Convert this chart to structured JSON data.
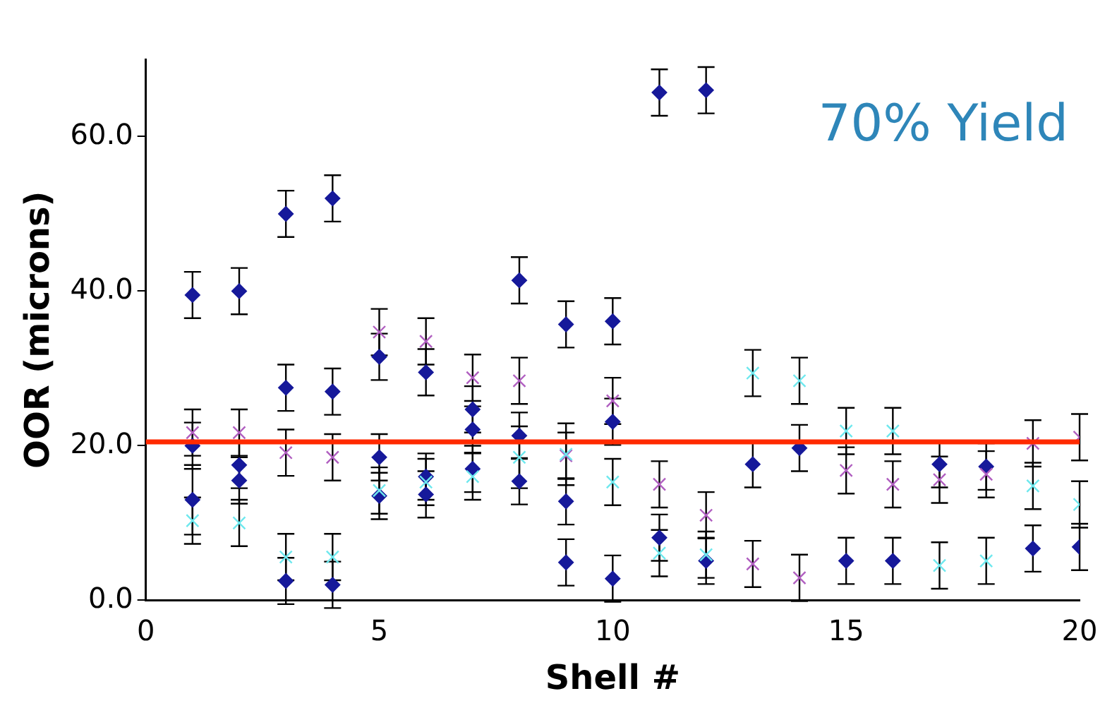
{
  "chart_data": {
    "type": "scatter",
    "xlabel": "Shell #",
    "ylabel": "OOR (microns)",
    "annotations": [
      "70% Yield"
    ],
    "xlim": [
      0,
      20
    ],
    "xticks": [
      0,
      5,
      10,
      15,
      20
    ],
    "ylim": [
      0,
      70
    ],
    "yticks": [
      {
        "value": 0,
        "label": "0.0"
      },
      {
        "value": 20,
        "label": "20.0"
      },
      {
        "value": 40,
        "label": "40.0"
      },
      {
        "value": 60,
        "label": "60.0"
      }
    ],
    "grid": false,
    "legend": false,
    "ref_lines": [
      {
        "axis": "y",
        "value": 20.5,
        "color": "#ff2a00"
      }
    ],
    "series": [
      {
        "color": "#16199a",
        "marker": "diamond",
        "x": [
          1,
          1,
          1,
          2,
          2,
          2,
          3,
          3,
          3,
          4,
          4,
          4,
          5,
          5,
          5,
          6,
          6,
          6,
          7,
          7,
          7,
          8,
          8,
          8,
          9,
          9,
          9,
          10,
          10,
          10,
          11,
          11,
          12,
          12,
          13,
          14,
          15,
          16,
          17,
          18,
          19,
          20
        ],
        "values": [
          39.5,
          20,
          13,
          40,
          17.5,
          15.5,
          50,
          27.5,
          2.5,
          52,
          27,
          2,
          31.5,
          18.5,
          13.5,
          29.5,
          16,
          13.7,
          24.7,
          22.1,
          17,
          41.4,
          21.3,
          15.4,
          35.7,
          12.8,
          4.9,
          36.1,
          23.1,
          2.8,
          65.7,
          8.1,
          66,
          5.1,
          17.6,
          19.7,
          5.1,
          5.1,
          17.6,
          17.3,
          6.7,
          6.9
        ],
        "errors": [
          3,
          3,
          4.5,
          3,
          3,
          3,
          3,
          3,
          3,
          3,
          3,
          3,
          3,
          3,
          3,
          3,
          3,
          3,
          3,
          3,
          3,
          3,
          3,
          3,
          3,
          3,
          3,
          3,
          3,
          3,
          3,
          3,
          3,
          3,
          3,
          3,
          3,
          3,
          3,
          3,
          3,
          3
        ]
      },
      {
        "color": "#b05ec0",
        "marker": "cross",
        "x": [
          1,
          2,
          3,
          4,
          5,
          6,
          7,
          8,
          9,
          10,
          11,
          12,
          13,
          14,
          15,
          16,
          17,
          18,
          19,
          20
        ],
        "values": [
          21.7,
          21.7,
          19.1,
          18.5,
          34.7,
          33.5,
          28.8,
          28.4,
          18.7,
          25.8,
          15,
          11,
          4.7,
          2.9,
          16.8,
          15,
          15.6,
          16.3,
          20.3,
          21.1
        ],
        "errors": [
          3,
          3,
          3,
          3,
          3,
          3,
          3,
          3,
          3,
          3,
          3,
          3,
          3,
          3,
          3,
          3,
          3,
          3,
          3,
          3
        ]
      },
      {
        "color": "#6ee8ee",
        "marker": "cross",
        "x": [
          1,
          2,
          3,
          4,
          5,
          6,
          7,
          8,
          9,
          10,
          11,
          12,
          13,
          14,
          15,
          16,
          17,
          18,
          19,
          20
        ],
        "values": [
          10.3,
          10,
          5.6,
          5.6,
          14.2,
          15.3,
          16,
          18.5,
          18.9,
          15.3,
          6.1,
          5.9,
          29.4,
          28.4,
          21.9,
          21.9,
          4.5,
          5.1,
          14.8,
          12.4
        ],
        "errors": [
          3,
          3,
          3,
          3,
          3,
          3,
          3,
          4,
          4,
          3,
          3,
          3,
          3,
          3,
          3,
          3,
          3,
          3,
          3,
          3
        ]
      }
    ]
  }
}
